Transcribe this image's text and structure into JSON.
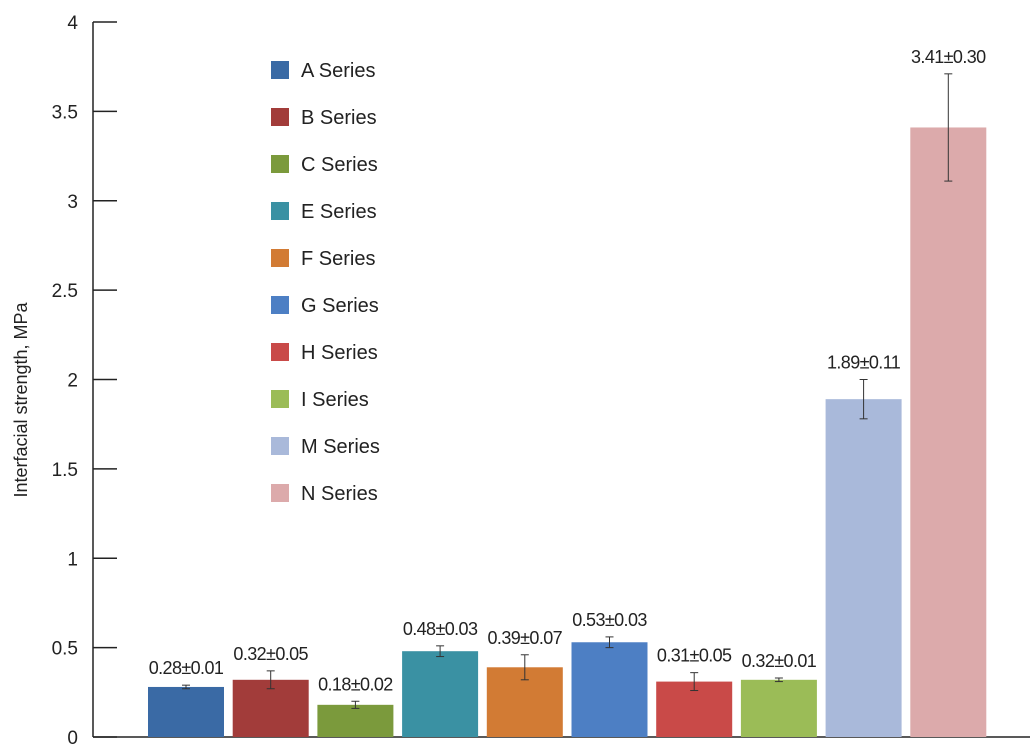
{
  "chart_data": {
    "type": "bar",
    "title": "",
    "xlabel": "",
    "ylabel": "Interfacial strength, MPa",
    "ylim": [
      0,
      4
    ],
    "yticks": [
      "0",
      "0.5",
      "1",
      "1.5",
      "2",
      "2.5",
      "3",
      "3.5",
      "4"
    ],
    "grid": false,
    "legend_position": "top-left",
    "series": [
      {
        "name": "A Series",
        "value": 0.28,
        "error": 0.01,
        "label": "0.28±0.01",
        "color": "#3a6aa5"
      },
      {
        "name": "B Series",
        "value": 0.32,
        "error": 0.05,
        "label": "0.32±0.05",
        "color": "#a23c3a"
      },
      {
        "name": "C Series",
        "value": 0.18,
        "error": 0.02,
        "label": "0.18±0.02",
        "color": "#7b9a3c"
      },
      {
        "name": "E Series",
        "value": 0.48,
        "error": 0.03,
        "label": "0.48±0.03",
        "color": "#3a91a3"
      },
      {
        "name": "F Series",
        "value": 0.39,
        "error": 0.07,
        "label": "0.39±0.07",
        "color": "#d27b34"
      },
      {
        "name": "G Series",
        "value": 0.53,
        "error": 0.03,
        "label": "0.53±0.03",
        "color": "#4d7fc4"
      },
      {
        "name": "H Series",
        "value": 0.31,
        "error": 0.05,
        "label": "0.31±0.05",
        "color": "#c94a48"
      },
      {
        "name": "I Series",
        "value": 0.32,
        "error": 0.01,
        "label": "0.32±0.01",
        "color": "#9bbc57"
      },
      {
        "name": "M Series",
        "value": 1.89,
        "error": 0.11,
        "label": "1.89±0.11",
        "color": "#a9b9da"
      },
      {
        "name": "N Series",
        "value": 3.41,
        "error": 0.3,
        "label": "3.41±0.30",
        "color": "#dcaaab"
      }
    ]
  }
}
